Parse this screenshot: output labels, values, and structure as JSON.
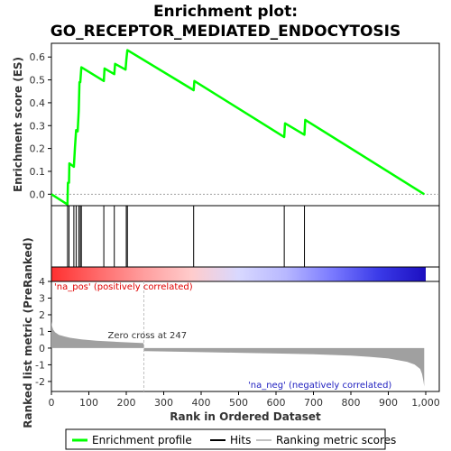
{
  "chart_data": {
    "type": "line",
    "title_line1": "Enrichment plot:",
    "title_line2": "GO_RECEPTOR_MEDIATED_ENDOCYTOSIS",
    "es_panel": {
      "ylabel": "Enrichment score (ES)",
      "ylim": [
        -0.05,
        0.66
      ],
      "yticks": [
        "0.0",
        "0.1",
        "0.2",
        "0.3",
        "0.4",
        "0.5",
        "0.6"
      ],
      "ytick_values": [
        0.0,
        0.1,
        0.2,
        0.3,
        0.4,
        0.5,
        0.6
      ],
      "series": [
        {
          "name": "Enrichment profile",
          "color": "#00ff00",
          "x": [
            0,
            43,
            44,
            47,
            48,
            60,
            63,
            66,
            70,
            73,
            75,
            77,
            80,
            140,
            142,
            168,
            170,
            198,
            200,
            203,
            380,
            382,
            622,
            624,
            676,
            678,
            996
          ],
          "y": [
            0.0,
            -0.045,
            0.05,
            0.05,
            0.135,
            0.12,
            0.205,
            0.28,
            0.275,
            0.365,
            0.49,
            0.49,
            0.555,
            0.495,
            0.55,
            0.525,
            0.57,
            0.545,
            0.585,
            0.63,
            0.455,
            0.495,
            0.25,
            0.31,
            0.26,
            0.325,
            0.0
          ]
        }
      ]
    },
    "hits": {
      "name": "Hits",
      "positions": [
        43,
        47,
        60,
        66,
        73,
        77,
        80,
        140,
        168,
        200,
        203,
        380,
        622,
        676
      ]
    },
    "color_bar": {
      "stops": [
        "#ff3030",
        "#ff6a6a",
        "#ff9f9f",
        "#ffcccc",
        "#d8d8ff",
        "#b8b8ff",
        "#7a7aff",
        "#3a3ae8",
        "#1c0fc0"
      ]
    },
    "ranked_panel": {
      "ylabel": "Ranked list metric (PreRanked)",
      "ylim": [
        -2.6,
        4.0
      ],
      "yticks": [
        "4",
        "3",
        "2",
        "1",
        "0",
        "-1",
        "-2"
      ],
      "ytick_values": [
        4,
        3,
        2,
        1,
        0,
        -1,
        -2
      ],
      "series_name": "Ranking metric scores",
      "metric_x": [
        0,
        2,
        5,
        10,
        20,
        35,
        50,
        80,
        120,
        180,
        246,
        248,
        300,
        400,
        500,
        600,
        700,
        800,
        850,
        900,
        950,
        970,
        985,
        990,
        994,
        996
      ],
      "metric_y": [
        1.6,
        1.3,
        1.1,
        0.95,
        0.8,
        0.7,
        0.62,
        0.52,
        0.44,
        0.37,
        0.3,
        -0.18,
        -0.2,
        -0.24,
        -0.28,
        -0.32,
        -0.37,
        -0.45,
        -0.52,
        -0.62,
        -0.82,
        -0.98,
        -1.25,
        -1.55,
        -2.0,
        -2.3
      ],
      "zero_cross_label": "Zero cross at 247",
      "zero_cross": 247,
      "pos_label": "'na_pos' (positively correlated)",
      "neg_label": "'na_neg' (negatively correlated)"
    },
    "xaxis": {
      "label": "Rank in Ordered Dataset",
      "xlim": [
        0,
        1000
      ],
      "ticks": [
        "0",
        "100",
        "200",
        "300",
        "400",
        "500",
        "600",
        "700",
        "800",
        "900",
        "1,000"
      ],
      "tick_values": [
        0,
        100,
        200,
        300,
        400,
        500,
        600,
        700,
        800,
        900,
        1000
      ]
    },
    "legend": [
      {
        "label": "Enrichment profile",
        "color": "#00ff00"
      },
      {
        "label": "Hits",
        "color": "#000000"
      },
      {
        "label": "Ranking metric scores",
        "color": "#c0c0c0"
      }
    ],
    "colors": {
      "pos_label": "#e00000",
      "neg_label": "#2020c0",
      "metric_fill": "#a0a0a0",
      "zero_line": "#c0c0c0"
    }
  }
}
